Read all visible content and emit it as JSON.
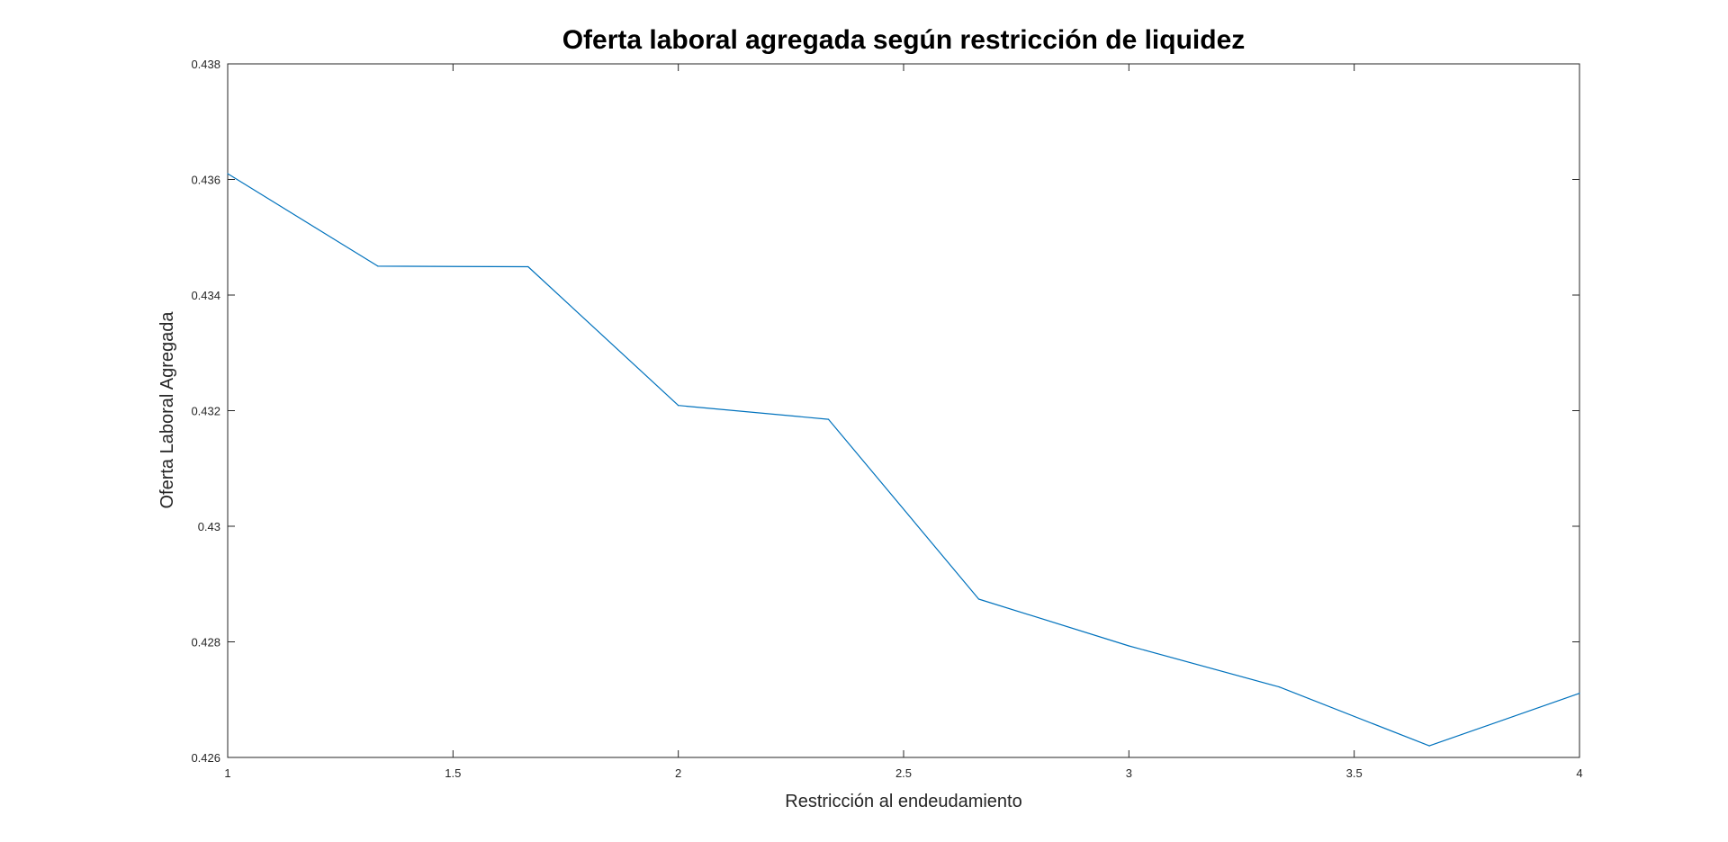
{
  "chart_data": {
    "type": "line",
    "title": "Oferta laboral agregada según restricción de liquidez",
    "xlabel": "Restricción al endeudamiento",
    "ylabel": "Oferta Laboral Agregada",
    "xlim": [
      1,
      4
    ],
    "ylim": [
      0.426,
      0.438
    ],
    "xticks": [
      1,
      1.5,
      2,
      2.5,
      3,
      3.5,
      4
    ],
    "xtick_labels": [
      "1",
      "1.5",
      "2",
      "2.5",
      "3",
      "3.5",
      "4"
    ],
    "yticks": [
      0.426,
      0.428,
      0.43,
      0.432,
      0.434,
      0.436,
      0.438
    ],
    "ytick_labels": [
      "0.426",
      "0.428",
      "0.43",
      "0.432",
      "0.434",
      "0.436",
      "0.438"
    ],
    "grid": false,
    "legend": "none",
    "series": [
      {
        "color": "#0072BD",
        "x": [
          1,
          1.3333,
          1.6667,
          2,
          2.3333,
          2.6667,
          3,
          3.3333,
          3.6667,
          4
        ],
        "y": [
          0.4361,
          0.4345,
          0.43449,
          0.43209,
          0.43185,
          0.42874,
          0.42793,
          0.42722,
          0.4262,
          0.42711
        ]
      }
    ]
  }
}
